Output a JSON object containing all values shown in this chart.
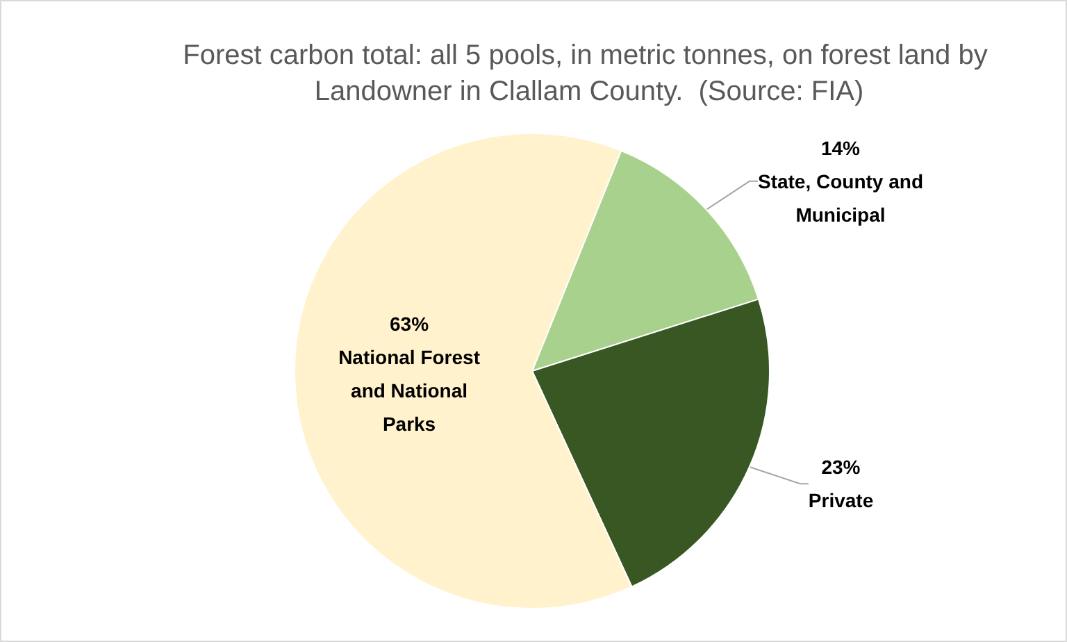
{
  "chart_data": {
    "type": "pie",
    "title": "Forest carbon total: all 5 pools, in metric tonnes, on forest land by Landowner in Clallam County.  (Source: FIA)",
    "categories": [
      "State, County and Municipal",
      "Private",
      "National Forest and National Parks"
    ],
    "values": [
      14,
      23,
      63
    ],
    "value_labels": [
      "14%",
      "23%",
      "63%"
    ],
    "colors": [
      "#a9d18e",
      "#385723",
      "#fff2cc"
    ]
  }
}
